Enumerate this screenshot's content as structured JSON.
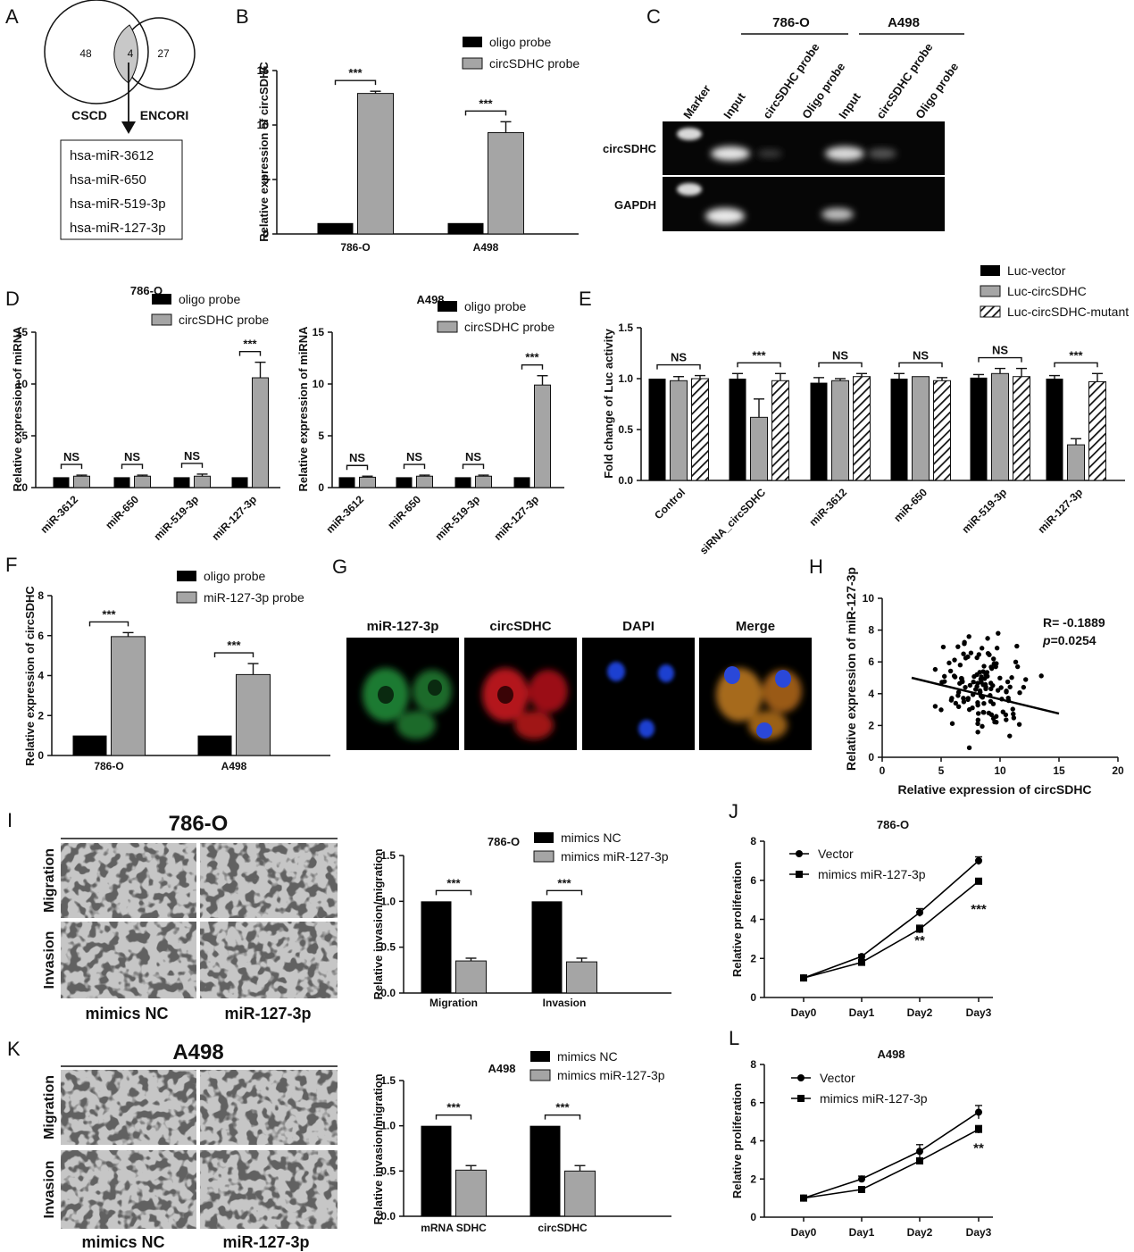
{
  "panels": {
    "A": "A",
    "B": "B",
    "C": "C",
    "D": "D",
    "E": "E",
    "F": "F",
    "G": "G",
    "H": "H",
    "I": "I",
    "J": "J",
    "K": "K",
    "L": "L"
  },
  "venn": {
    "left_label": "CSCD",
    "right_label": "ENCORI",
    "left_count": "48",
    "overlap_count": "4",
    "right_count": "27",
    "mirnas": [
      "hsa-miR-3612",
      "hsa-miR-650",
      "hsa-miR-519-3p",
      "hsa-miR-127-3p"
    ]
  },
  "gel": {
    "group_labels": [
      "786-O",
      "A498"
    ],
    "lane_labels": [
      "Marker",
      "Input",
      "circSDHC probe",
      "Oligo probe",
      "Input",
      "circSDHC probe",
      "Oligo probe"
    ],
    "row_labels": [
      "circSDHC",
      "GAPDH"
    ]
  },
  "fish": {
    "channels": [
      "miR-127-3p",
      "circSDHC",
      "DAPI",
      "Merge"
    ]
  },
  "transwell": {
    "I": {
      "title": "786-O",
      "rows": [
        "Migration",
        "Invasion"
      ],
      "cols": [
        "mimics NC",
        "miR-127-3p"
      ]
    },
    "K": {
      "title": "A498",
      "rows": [
        "Migration",
        "Invasion"
      ],
      "cols": [
        "mimics NC",
        "miR-127-3p"
      ]
    }
  },
  "chart_data": [
    {
      "id": "B",
      "type": "bar",
      "ylabel": "Relative expression of circSDHC",
      "ylim": [
        0,
        15
      ],
      "yticks": [
        "0",
        "5",
        "10",
        "15"
      ],
      "categories": [
        "786-O",
        "A498"
      ],
      "series": [
        {
          "name": "oligo probe",
          "color": "#000000",
          "values": [
            1,
            1
          ],
          "err": [
            0,
            0
          ]
        },
        {
          "name": "circSDHC probe",
          "color": "#a5a5a5",
          "values": [
            12.9,
            9.3
          ],
          "err": [
            0.2,
            1.0
          ]
        }
      ],
      "sig": [
        "***",
        "***"
      ]
    },
    {
      "id": "D1",
      "type": "bar",
      "title": "786-O",
      "ylabel": "Relative expression of miRNA",
      "ylim": [
        0,
        15
      ],
      "yticks": [
        "0",
        "5",
        "10",
        "15"
      ],
      "categories": [
        "miR-3612",
        "miR-650",
        "miR-519-3p",
        "miR-127-3p"
      ],
      "series": [
        {
          "name": "oligo probe",
          "color": "#000000",
          "values": [
            1,
            1,
            1,
            1
          ],
          "err": [
            0,
            0,
            0,
            0
          ]
        },
        {
          "name": "circSDHC probe",
          "color": "#a5a5a5",
          "values": [
            1.1,
            1.1,
            1.1,
            10.6
          ],
          "err": [
            0.1,
            0.1,
            0.2,
            1.5
          ]
        }
      ],
      "sig": [
        "NS",
        "NS",
        "NS",
        "***"
      ]
    },
    {
      "id": "D2",
      "type": "bar",
      "title": "A498",
      "ylabel": "Relative expression of miRNA",
      "ylim": [
        0,
        15
      ],
      "yticks": [
        "0",
        "5",
        "10",
        "15"
      ],
      "categories": [
        "miR-3612",
        "miR-650",
        "miR-519-3p",
        "miR-127-3p"
      ],
      "series": [
        {
          "name": "oligo probe",
          "color": "#000000",
          "values": [
            1,
            1,
            1,
            1
          ],
          "err": [
            0,
            0,
            0,
            0
          ]
        },
        {
          "name": "circSDHC probe",
          "color": "#a5a5a5",
          "values": [
            1.0,
            1.1,
            1.1,
            9.9
          ],
          "err": [
            0.1,
            0.1,
            0.1,
            0.9
          ]
        }
      ],
      "sig": [
        "NS",
        "NS",
        "NS",
        "***"
      ]
    },
    {
      "id": "E",
      "type": "bar",
      "ylabel": "Fold change of Luc activity",
      "ylim": [
        0,
        1.5
      ],
      "yticks": [
        "0.0",
        "0.5",
        "1.0",
        "1.5"
      ],
      "categories": [
        "Control",
        "siRNA_circSDHC",
        "miR-3612",
        "miR-650",
        "miR-519-3p",
        "miR-127-3p"
      ],
      "series": [
        {
          "name": "Luc-vector",
          "color": "#000000",
          "values": [
            1.0,
            1.0,
            0.96,
            1.0,
            1.01,
            1.0
          ],
          "err": [
            0,
            0.05,
            0.05,
            0.05,
            0.03,
            0.03
          ]
        },
        {
          "name": "Luc-circSDHC",
          "color": "#a5a5a5",
          "values": [
            0.98,
            0.62,
            0.98,
            1.02,
            1.05,
            0.35
          ],
          "err": [
            0.04,
            0.18,
            0.02,
            0.0,
            0.05,
            0.06
          ]
        },
        {
          "name": "Luc-circSDHC-mutant",
          "color": "hatch",
          "values": [
            1.0,
            0.98,
            1.02,
            0.98,
            1.02,
            0.97
          ],
          "err": [
            0.03,
            0.07,
            0.03,
            0.03,
            0.08,
            0.08
          ]
        }
      ],
      "sig": [
        "NS",
        "***",
        "NS",
        "NS",
        "NS",
        "***"
      ]
    },
    {
      "id": "F",
      "type": "bar",
      "ylabel": "Relative expression of circSDHC",
      "ylim": [
        0,
        8
      ],
      "yticks": [
        "0",
        "2",
        "4",
        "6",
        "8"
      ],
      "categories": [
        "786-O",
        "A498"
      ],
      "series": [
        {
          "name": "oligo probe",
          "color": "#000000",
          "values": [
            1,
            1
          ],
          "err": [
            0,
            0
          ]
        },
        {
          "name": "miR-127-3p probe",
          "color": "#a5a5a5",
          "values": [
            5.95,
            4.05
          ],
          "err": [
            0.2,
            0.55
          ]
        }
      ],
      "sig": [
        "***",
        "***"
      ]
    },
    {
      "id": "H",
      "type": "scatter",
      "xlabel": "Relative expression of circSDHC",
      "ylabel": "Relative expression of miR-127-3p",
      "xlim": [
        0,
        20
      ],
      "ylim": [
        0,
        10
      ],
      "xticks": [
        "0",
        "5",
        "10",
        "15",
        "20"
      ],
      "yticks": [
        "0",
        "2",
        "4",
        "6",
        "8",
        "10"
      ],
      "stats_r": "R= -0.1889",
      "stats_p_label": "p",
      "stats_p_value": "=0.0254",
      "fit": {
        "x": [
          2.5,
          15
        ],
        "y": [
          5.0,
          2.75
        ]
      }
    },
    {
      "id": "I2",
      "type": "bar",
      "title": "786-O",
      "ylabel": "Relative invasion/migration",
      "ylim": [
        0,
        1.5
      ],
      "yticks": [
        "0.0",
        "0.5",
        "1.0",
        "1.5"
      ],
      "categories": [
        "Migration",
        "Invasion"
      ],
      "series": [
        {
          "name": "mimics NC",
          "color": "#000000",
          "values": [
            1.0,
            1.0
          ],
          "err": [
            0,
            0
          ]
        },
        {
          "name": "mimics miR-127-3p",
          "color": "#a5a5a5",
          "values": [
            0.35,
            0.34
          ],
          "err": [
            0.03,
            0.04
          ]
        }
      ],
      "sig": [
        "***",
        "***"
      ]
    },
    {
      "id": "K2",
      "type": "bar",
      "title": "A498",
      "ylabel": "Relative invasion/migration",
      "ylim": [
        0,
        1.5
      ],
      "yticks": [
        "0.0",
        "0.5",
        "1.0",
        "1.5"
      ],
      "categories": [
        "mRNA SDHC",
        "circSDHC"
      ],
      "series": [
        {
          "name": "mimics NC",
          "color": "#000000",
          "values": [
            1.0,
            1.0
          ],
          "err": [
            0,
            0
          ]
        },
        {
          "name": "mimics miR-127-3p",
          "color": "#a5a5a5",
          "values": [
            0.51,
            0.5
          ],
          "err": [
            0.05,
            0.06
          ]
        }
      ],
      "sig": [
        "***",
        "***"
      ]
    },
    {
      "id": "J",
      "type": "line",
      "title": "786-O",
      "ylabel": "Relative proliferation",
      "ylim": [
        0,
        8
      ],
      "yticks": [
        "0",
        "2",
        "4",
        "6",
        "8"
      ],
      "categories": [
        "Day0",
        "Day1",
        "Day2",
        "Day3"
      ],
      "series": [
        {
          "name": "Vector",
          "marker": "circle",
          "values": [
            1.0,
            2.1,
            4.35,
            7.0
          ],
          "err": [
            0.05,
            0.1,
            0.2,
            0.2
          ]
        },
        {
          "name": "mimics miR-127-3p",
          "marker": "square",
          "values": [
            1.0,
            1.8,
            3.5,
            5.95
          ],
          "err": [
            0.05,
            0.1,
            0.2,
            0.15
          ]
        }
      ],
      "sig": [
        {
          "day": 2,
          "y": 2.7,
          "label": "**"
        },
        {
          "day": 3,
          "y": 4.3,
          "label": "***"
        }
      ]
    },
    {
      "id": "L",
      "type": "line",
      "title": "A498",
      "ylabel": "Relative proliferation",
      "ylim": [
        0,
        8
      ],
      "yticks": [
        "0",
        "2",
        "4",
        "6",
        "8"
      ],
      "categories": [
        "Day0",
        "Day1",
        "Day2",
        "Day3"
      ],
      "series": [
        {
          "name": "Vector",
          "marker": "circle",
          "values": [
            1.0,
            2.0,
            3.45,
            5.5
          ],
          "err": [
            0.05,
            0.15,
            0.35,
            0.35
          ]
        },
        {
          "name": "mimics miR-127-3p",
          "marker": "square",
          "values": [
            1.0,
            1.45,
            2.95,
            4.6
          ],
          "err": [
            0.05,
            0.05,
            0.15,
            0.2
          ]
        }
      ],
      "sig": [
        {
          "day": 3,
          "y": 3.4,
          "label": "**"
        }
      ]
    }
  ]
}
